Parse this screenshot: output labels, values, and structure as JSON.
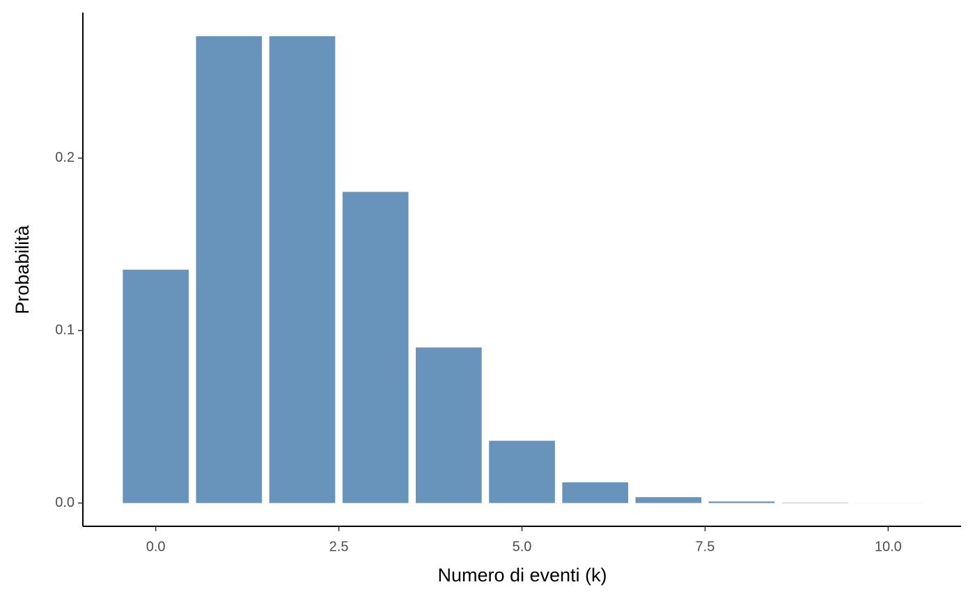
{
  "chart_data": {
    "type": "bar",
    "x_label": "Numero di eventi (k)",
    "y_label": "Probabilità",
    "x": [
      0,
      1,
      2,
      3,
      4,
      5,
      6,
      7,
      8,
      9,
      10
    ],
    "values": [
      0.1353,
      0.2707,
      0.2707,
      0.1804,
      0.0902,
      0.0361,
      0.012,
      0.0034,
      0.0009,
      0.0002,
      4e-05
    ],
    "bar_width": 0.9,
    "color": "#6893ba",
    "xlim": [
      -0.995,
      10.995
    ],
    "ylim": [
      -0.0135,
      0.2844
    ],
    "xticks": [
      {
        "value": 0,
        "label": "0.0"
      },
      {
        "value": 2.5,
        "label": "2.5"
      },
      {
        "value": 5,
        "label": "5.0"
      },
      {
        "value": 7.5,
        "label": "7.5"
      },
      {
        "value": 10,
        "label": "10.0"
      }
    ],
    "yticks": [
      {
        "value": 0,
        "label": "0.0"
      },
      {
        "value": 0.1,
        "label": "0.1"
      },
      {
        "value": 0.2,
        "label": "0.2"
      }
    ],
    "grid": false
  }
}
